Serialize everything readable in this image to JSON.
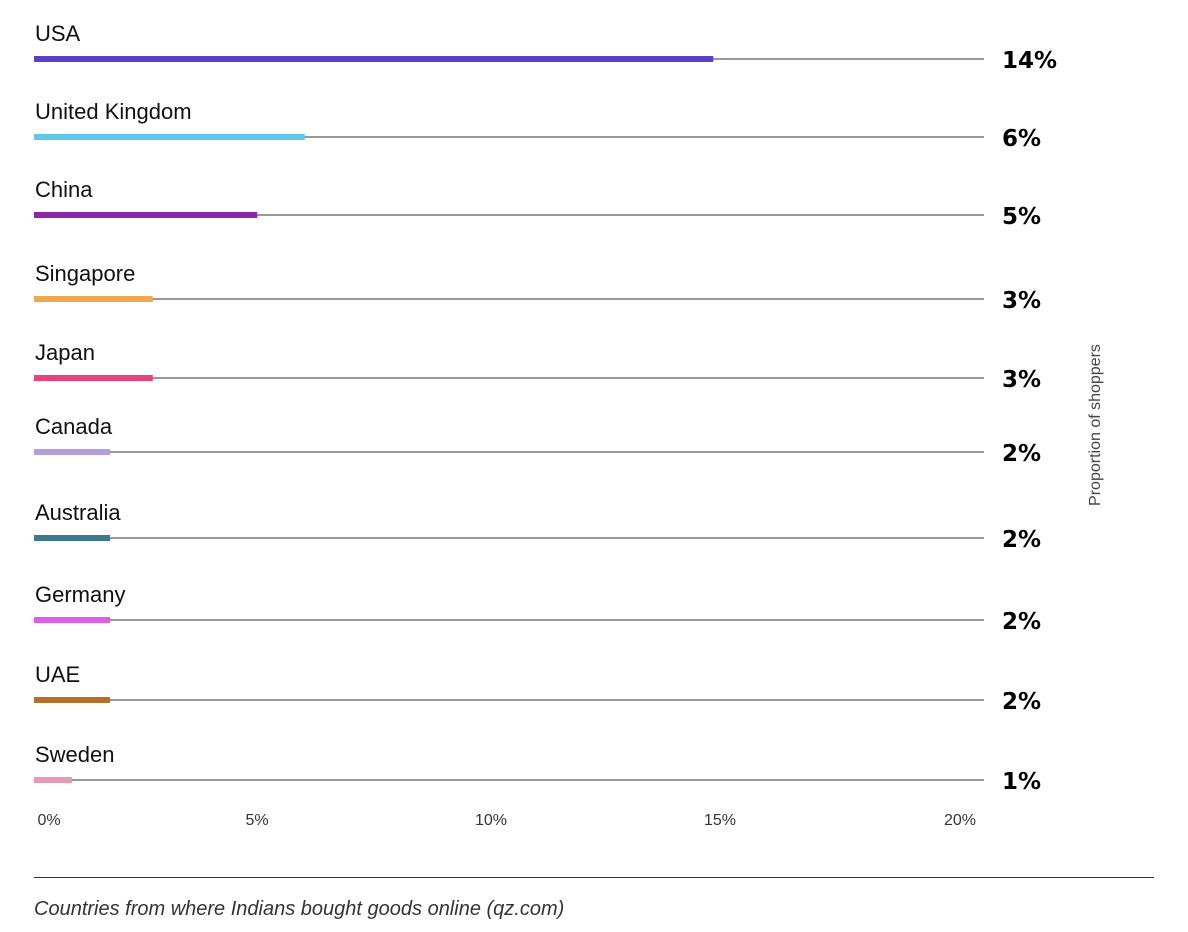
{
  "chart_data": {
    "type": "bar",
    "orientation": "horizontal",
    "categories": [
      "USA",
      "United Kingdom",
      "China",
      "Singapore",
      "Japan",
      "Canada",
      "Australia",
      "Germany",
      "UAE",
      "Sweden"
    ],
    "values": [
      14.3,
      5.7,
      4.7,
      2.5,
      2.5,
      1.6,
      1.6,
      1.6,
      1.6,
      0.8
    ],
    "value_labels": [
      "14%",
      "6%",
      "5%",
      "3%",
      "3%",
      "2%",
      "2%",
      "2%",
      "2%",
      "1%"
    ],
    "colors": [
      "#5b3fc4",
      "#5ec8e8",
      "#8e24aa",
      "#f0a84e",
      "#e8447a",
      "#b39ddb",
      "#3a7a8c",
      "#dd5ce8",
      "#b5702a",
      "#e59ab8"
    ],
    "xlim": [
      0,
      20
    ],
    "xticks": [
      "0%",
      "5%",
      "10%",
      "15%",
      "20%"
    ],
    "ylabel": "Proportion of shoppers",
    "title": "",
    "legend": "none"
  },
  "caption": "Countries from where Indians bought goods online (qz.com)"
}
